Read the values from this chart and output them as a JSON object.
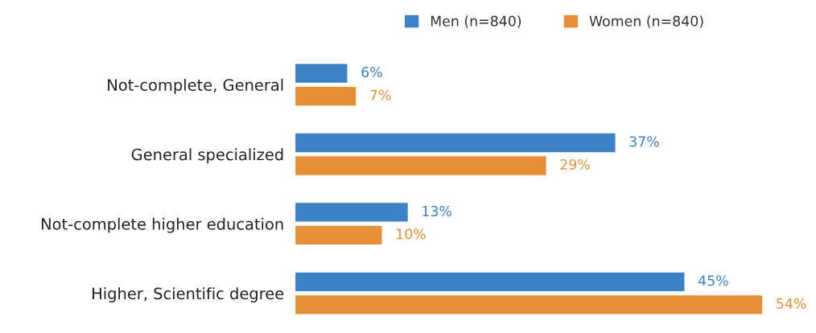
{
  "chart_data": {
    "type": "bar",
    "orientation": "horizontal",
    "categories": [
      "Not-complete, General",
      "General specialized",
      "Not-complete higher education",
      "Higher, Scientific degree"
    ],
    "series": [
      {
        "name": "Men (n=840)",
        "color": "#3d82c6",
        "values": [
          6,
          37,
          13,
          45
        ],
        "value_labels": [
          "6%",
          "37%",
          "13%",
          "45%"
        ]
      },
      {
        "name": "Women (n=840)",
        "color": "#e58f37",
        "values": [
          7,
          29,
          10,
          54
        ],
        "value_labels": [
          "7%",
          "29%",
          "10%",
          "54%"
        ]
      }
    ],
    "legend": "top",
    "tick_labels": "y"
  }
}
